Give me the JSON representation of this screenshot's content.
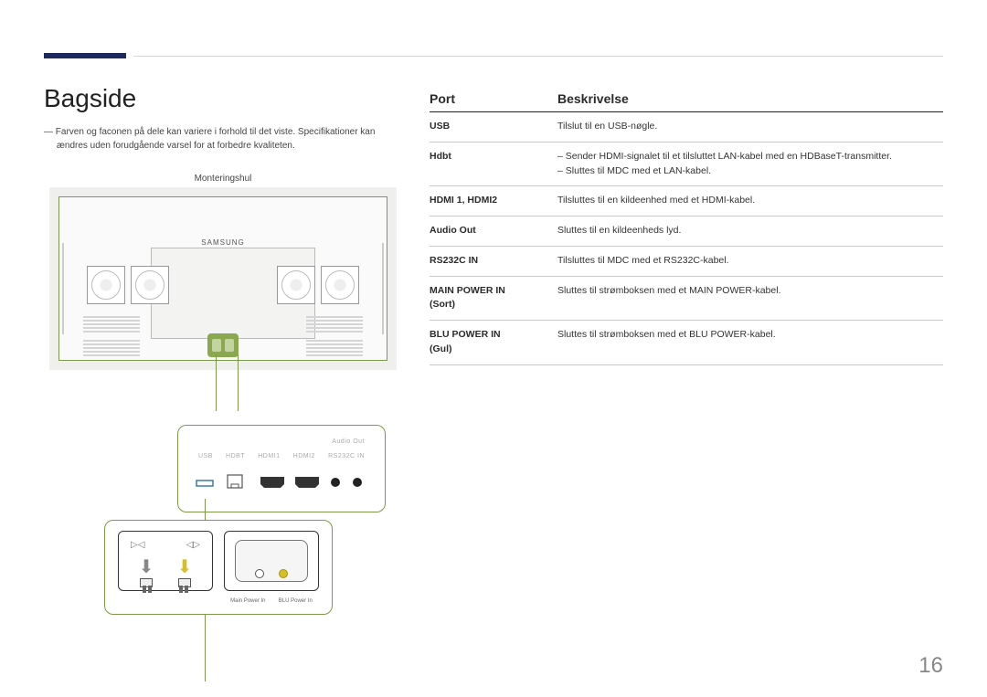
{
  "page_number": "16",
  "heading": "Bagside",
  "note": "Farven og faconen på dele kan variere i forhold til det viste. Specifikationer kan ændres uden forudgående varsel for at forbedre kvaliteten.",
  "diagram": {
    "mount_label": "Monteringshul",
    "brand": "SAMSUNG",
    "port_labels": {
      "audio_out": "Audio Out",
      "usb": "USB",
      "hdbt": "HDBT",
      "hdmi1": "HDMI1",
      "hdmi2": "HDMI2",
      "rs232c": "RS232C IN"
    },
    "power_labels": {
      "main": "Main Power In",
      "blu": "BLU Power In"
    },
    "colors": {
      "outline_green": "#7d9a4a",
      "hub_green": "#8aa94f",
      "arrow_grey": "#888888",
      "arrow_yellow": "#d6c02a"
    }
  },
  "table": {
    "header": {
      "port": "Port",
      "desc": "Beskrivelse"
    },
    "rows": [
      {
        "port": "USB",
        "desc_plain": "Tilslut til en USB-nøgle."
      },
      {
        "port": "Hdbt",
        "desc_bullets": [
          "Sender HDMI-signalet til et tilsluttet LAN-kabel med en HDBaseT-transmitter.",
          "Sluttes til MDC med et LAN-kabel."
        ]
      },
      {
        "port": "HDMI 1, HDMI2",
        "desc_plain": "Tilsluttes til en kildeenhed med et HDMI-kabel."
      },
      {
        "port": "Audio Out",
        "desc_plain": "Sluttes til en kildeenheds lyd."
      },
      {
        "port": "RS232C IN",
        "desc_plain": "Tilsluttes til MDC med et RS232C-kabel."
      },
      {
        "port": "MAIN POWER IN (Sort)",
        "desc_plain": "Sluttes til strømboksen med et MAIN POWER-kabel."
      },
      {
        "port": "BLU POWER IN (Gul)",
        "desc_plain": "Sluttes til strømboksen med et BLU POWER-kabel."
      }
    ]
  }
}
